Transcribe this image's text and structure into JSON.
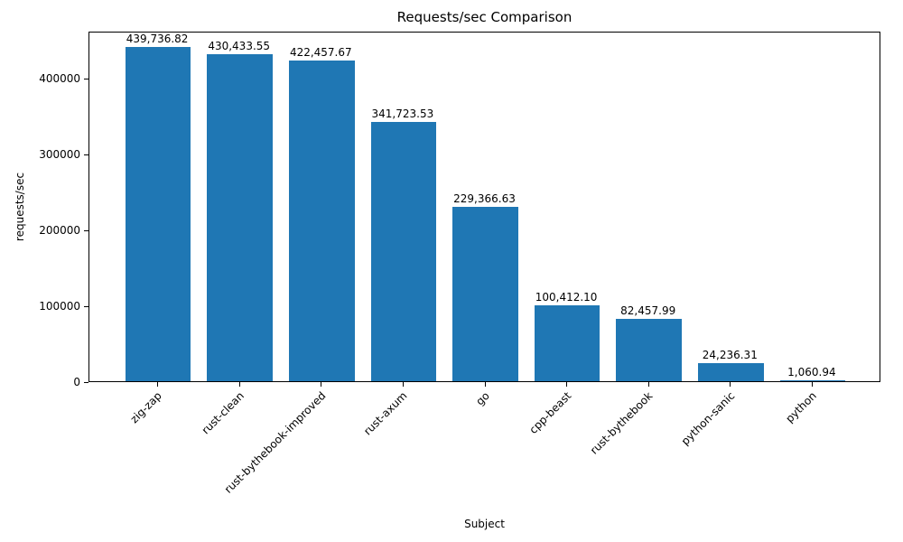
{
  "chart_data": {
    "type": "bar",
    "title": "Requests/sec Comparison",
    "xlabel": "Subject",
    "ylabel": "requests/sec",
    "categories": [
      "zig-zap",
      "rust-clean",
      "rust-bythebook-improved",
      "rust-axum",
      "go",
      "cpp-beast",
      "rust-bythebook",
      "python-sanic",
      "python"
    ],
    "values": [
      439736.82,
      430433.55,
      422457.67,
      341723.53,
      229366.63,
      100412.1,
      82457.99,
      24236.31,
      1060.94
    ],
    "value_labels": [
      "439,736.82",
      "430,433.55",
      "422,457.67",
      "341,723.53",
      "229,366.63",
      "100,412.10",
      "82,457.99",
      "24,236.31",
      "1,060.94"
    ],
    "yticks": [
      0,
      100000,
      200000,
      300000,
      400000
    ],
    "ytick_labels": [
      "0",
      "100000",
      "200000",
      "300000",
      "400000"
    ],
    "ylim": [
      0,
      461723
    ],
    "bar_color": "#1f77b4",
    "grid": false,
    "legend": null
  }
}
